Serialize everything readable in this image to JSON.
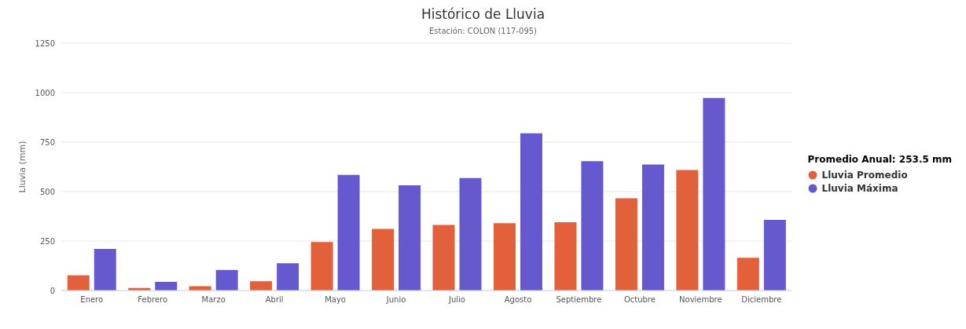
{
  "chart_data": {
    "type": "bar",
    "title": "Histórico de Lluvia",
    "subtitle": "Estación: COLON (117-095)",
    "ylabel": "Lluvia (mm)",
    "legend_title": "Promedio Anual: 253.5 mm",
    "categories": [
      "Enero",
      "Febrero",
      "Marzo",
      "Abril",
      "Mayo",
      "Junio",
      "Julio",
      "Agosto",
      "Septiembre",
      "Octubre",
      "Noviembre",
      "Diciembre"
    ],
    "series": [
      {
        "name": "Lluvia Promedio",
        "color": "#e2603a",
        "values": [
          77,
          13,
          22,
          47,
          245,
          312,
          331,
          340,
          345,
          466,
          609,
          166
        ]
      },
      {
        "name": "Lluvia Máxima",
        "color": "#6659d0",
        "values": [
          210,
          44,
          104,
          138,
          584,
          532,
          568,
          795,
          654,
          637,
          973,
          357
        ]
      }
    ],
    "ylim": [
      0,
      1250
    ],
    "yticks": [
      0,
      250,
      500,
      750,
      1000,
      1250
    ],
    "grid": "y",
    "legend": "right"
  }
}
